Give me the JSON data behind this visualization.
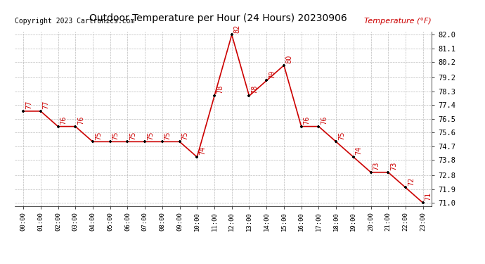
{
  "title": "Outdoor Temperature per Hour (24 Hours) 20230906",
  "copyright": "Copyright 2023 Cartronics.com",
  "legend_label": "Temperature (°F)",
  "hours": [
    "00:00",
    "01:00",
    "02:00",
    "03:00",
    "04:00",
    "05:00",
    "06:00",
    "07:00",
    "08:00",
    "09:00",
    "10:00",
    "11:00",
    "12:00",
    "13:00",
    "14:00",
    "15:00",
    "16:00",
    "17:00",
    "18:00",
    "19:00",
    "20:00",
    "21:00",
    "22:00",
    "23:00"
  ],
  "temps": [
    77,
    77,
    76,
    76,
    75,
    75,
    75,
    75,
    75,
    75,
    74,
    78,
    82,
    78,
    79,
    80,
    76,
    76,
    75,
    74,
    73,
    73,
    72,
    71
  ],
  "line_color": "#cc0000",
  "marker_color": "#000000",
  "label_color": "#cc0000",
  "background_color": "#ffffff",
  "grid_color": "#bbbbbb",
  "title_color": "#000000",
  "copyright_color": "#000000",
  "legend_color": "#cc0000",
  "ylim_min": 71.0,
  "ylim_max": 82.0,
  "ytick_labels": [
    "71.0",
    "71.9",
    "72.8",
    "73.8",
    "74.7",
    "75.6",
    "76.5",
    "77.4",
    "78.3",
    "79.2",
    "80.2",
    "81.1",
    "82.0"
  ],
  "ytick_values": [
    71.0,
    71.9,
    72.8,
    73.8,
    74.7,
    75.6,
    76.5,
    77.4,
    78.3,
    79.2,
    80.2,
    81.1,
    82.0
  ]
}
